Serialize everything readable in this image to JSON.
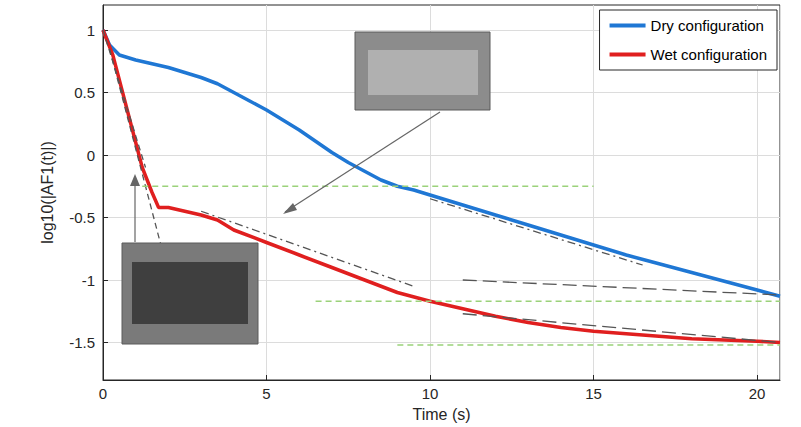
{
  "chart_data": {
    "type": "line",
    "x_label": "Time (s)",
    "y_label": "log10(|AF1(t)|)",
    "xlim": [
      0,
      20.7
    ],
    "xticks": [
      0,
      5,
      10,
      15,
      20
    ],
    "ylim": [
      -1.8,
      1.2
    ],
    "yticks": [
      -1.5,
      -1,
      -0.5,
      0,
      0.5,
      1
    ],
    "grid": true,
    "legend": "upper right",
    "series": [
      {
        "name": "Dry configuration",
        "color": "#1f77d4",
        "x": [
          0,
          0.2,
          0.5,
          1,
          1.5,
          2,
          2.5,
          3,
          3.5,
          4,
          4.5,
          5,
          5.5,
          6,
          6.5,
          7,
          7.5,
          8,
          8.5,
          9,
          9.5,
          10,
          11,
          12,
          13,
          14,
          15,
          16,
          17,
          18,
          19,
          20,
          20.7
        ],
        "values": [
          1,
          0.88,
          0.8,
          0.76,
          0.73,
          0.7,
          0.66,
          0.62,
          0.57,
          0.5,
          0.43,
          0.36,
          0.28,
          0.2,
          0.11,
          0.02,
          -0.06,
          -0.13,
          -0.2,
          -0.25,
          -0.28,
          -0.32,
          -0.4,
          -0.48,
          -0.56,
          -0.64,
          -0.72,
          -0.8,
          -0.87,
          -0.94,
          -1.01,
          -1.08,
          -1.13
        ]
      },
      {
        "name": "Wet configuration",
        "color": "#e01f1f",
        "x": [
          0,
          0.3,
          0.6,
          0.9,
          1.2,
          1.5,
          1.7,
          2,
          2.5,
          3,
          3.5,
          4,
          5,
          6,
          7,
          8,
          9,
          10,
          11,
          12,
          13,
          14,
          15,
          16,
          17,
          18,
          19,
          20,
          20.7
        ],
        "values": [
          1,
          0.8,
          0.5,
          0.2,
          -0.1,
          -0.3,
          -0.42,
          -0.42,
          -0.45,
          -0.48,
          -0.52,
          -0.6,
          -0.7,
          -0.8,
          -0.9,
          -1.0,
          -1.1,
          -1.17,
          -1.23,
          -1.29,
          -1.34,
          -1.38,
          -1.41,
          -1.43,
          -1.45,
          -1.47,
          -1.48,
          -1.49,
          -1.5
        ]
      }
    ],
    "guides": [
      {
        "x": [
          0.2,
          1.8
        ],
        "values": [
          0.85,
          -0.75
        ],
        "color": "#555555",
        "line_style": "dashed"
      },
      {
        "x": [
          0,
          1.3
        ],
        "values": [
          1,
          -0.1
        ],
        "color": "#555555",
        "line_style": "dashed"
      },
      {
        "x": [
          3,
          9.5
        ],
        "values": [
          -0.45,
          -1.05
        ],
        "color": "#555555",
        "line_style": "dashdot"
      },
      {
        "x": [
          10,
          16.5
        ],
        "values": [
          -0.35,
          -0.88
        ],
        "color": "#555555",
        "line_style": "dashdot"
      },
      {
        "x": [
          11,
          20.7
        ],
        "values": [
          -1.0,
          -1.12
        ],
        "color": "#555555",
        "line_style": "longdash"
      },
      {
        "x": [
          11,
          20.7
        ],
        "values": [
          -1.27,
          -1.5
        ],
        "color": "#555555",
        "line_style": "longdash"
      },
      {
        "x": [
          1.2,
          15
        ],
        "values": [
          -0.25,
          -0.25
        ],
        "color": "#9bd27a",
        "line_style": "dashed"
      },
      {
        "x": [
          6.5,
          20.7
        ],
        "values": [
          -1.17,
          -1.17
        ],
        "color": "#9bd27a",
        "line_style": "dashed"
      },
      {
        "x": [
          9,
          20.7
        ],
        "values": [
          -1.52,
          -1.52
        ],
        "color": "#9bd27a",
        "line_style": "dashed"
      }
    ]
  }
}
